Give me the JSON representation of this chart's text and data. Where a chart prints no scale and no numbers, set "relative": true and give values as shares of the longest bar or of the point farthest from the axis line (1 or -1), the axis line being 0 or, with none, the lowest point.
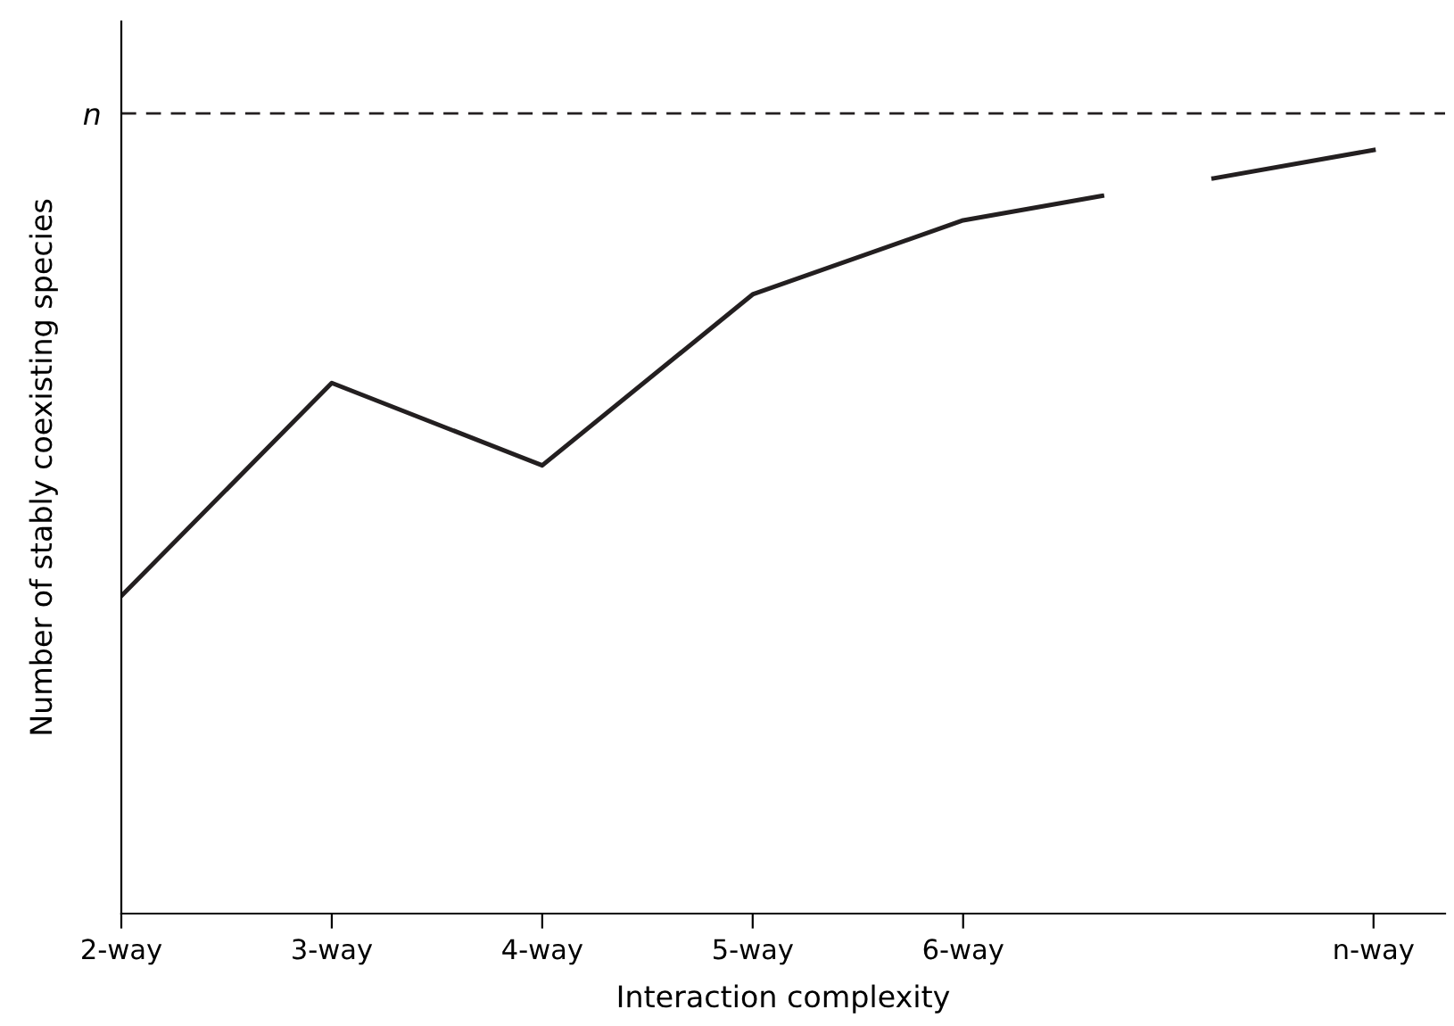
{
  "chart_data": {
    "type": "line",
    "relative": true,
    "xlabel": "Interaction complexity",
    "ylabel": "Number of stably coexisting species",
    "x": [
      2,
      3,
      4,
      5,
      6,
      6.66,
      6.9,
      7.19,
      7.95
    ],
    "series": [
      {
        "color": "#231f20",
        "values": [
          0.416,
          0.695,
          0.587,
          0.811,
          0.908,
          0.94,
          null,
          0.963,
          1.0
        ]
      }
    ],
    "xlim": [
      2,
      8.29
    ],
    "xticks": [
      {
        "value": 2,
        "label": "2-way"
      },
      {
        "value": 3,
        "label": "3-way"
      },
      {
        "value": 4,
        "label": "4-way"
      },
      {
        "value": 5,
        "label": "5-way"
      },
      {
        "value": 6,
        "label": "6-way"
      },
      {
        "value": 7.95,
        "label": "n-way"
      }
    ],
    "ref_lines": [
      {
        "axis": "y",
        "value": 1.048,
        "label": "n",
        "color": "#231f20",
        "line_style": "dashed"
      }
    ],
    "tick_labels": "x",
    "grid": false,
    "legend": false,
    "marker": "none",
    "line_style": "solid"
  }
}
